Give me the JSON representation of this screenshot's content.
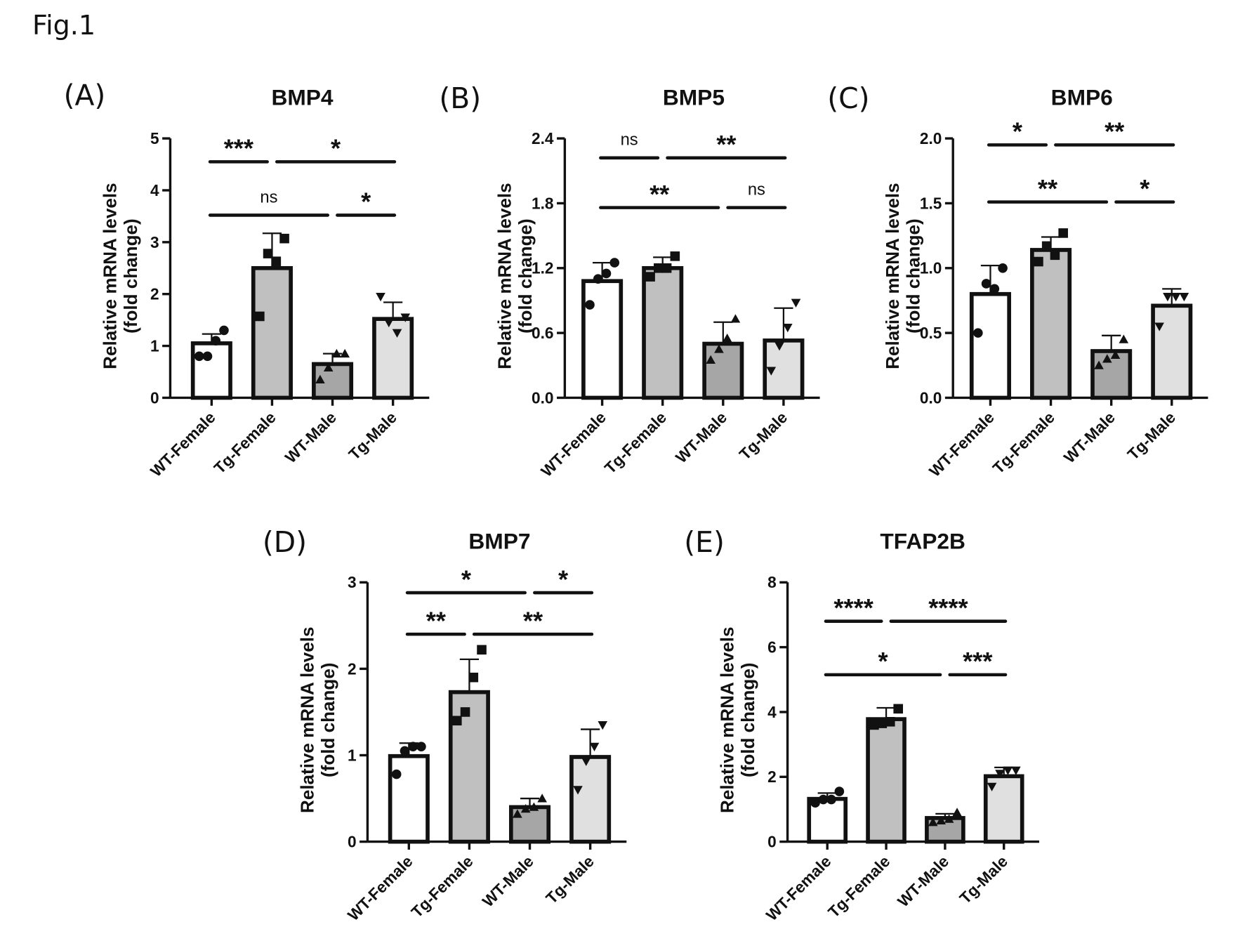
{
  "figure_label": "Fig.1",
  "colors": {
    "WT-Female": "#ffffff",
    "Tg-Female": "#c0c0c0",
    "WT-Male": "#a6a6a6",
    "Tg-Male": "#e0e0e0",
    "stroke": "#111111"
  },
  "markers": {
    "WT-Female": "circle",
    "Tg-Female": "square",
    "WT-Male": "triangle-up",
    "Tg-Male": "triangle-down"
  },
  "chart_data": [
    {
      "panel": "(A)",
      "type": "bar",
      "title": "BMP4",
      "ylabel": [
        "Relative mRNA levels",
        "(fold change)"
      ],
      "xlabel": "",
      "categories": [
        "WT-Female",
        "Tg-Female",
        "WT-Male",
        "Tg-Male"
      ],
      "ylim": [
        0,
        5
      ],
      "yticks": [
        "0",
        "1",
        "2",
        "3",
        "4",
        "5"
      ],
      "ytick_values": [
        0,
        1,
        2,
        3,
        4,
        5
      ],
      "values": [
        1.05,
        2.5,
        0.65,
        1.52
      ],
      "errors": [
        0.18,
        0.67,
        0.2,
        0.32
      ],
      "points": [
        [
          0.8,
          0.8,
          1.1,
          1.3
        ],
        [
          1.57,
          2.78,
          2.63,
          3.07
        ],
        [
          0.35,
          0.58,
          0.85,
          0.85
        ],
        [
          1.95,
          1.45,
          1.25,
          1.55
        ]
      ],
      "significance": [
        {
          "from": 0,
          "to": 1,
          "label": "***",
          "level": 4.55
        },
        {
          "from": 1,
          "to": 3,
          "label": "*",
          "level": 4.55
        },
        {
          "from": 0,
          "to": 2,
          "label": "ns",
          "level": 3.52
        },
        {
          "from": 2,
          "to": 3,
          "label": "*",
          "level": 3.52
        }
      ]
    },
    {
      "panel": "(B)",
      "type": "bar",
      "title": "BMP5",
      "ylabel": [
        "Relative mRNA levels",
        "(fold change)"
      ],
      "xlabel": "",
      "categories": [
        "WT-Female",
        "Tg-Female",
        "WT-Male",
        "Tg-Male"
      ],
      "ylim": [
        0,
        2.4
      ],
      "yticks": [
        "0.0",
        "0.6",
        "1.2",
        "1.8",
        "2.4"
      ],
      "ytick_values": [
        0,
        0.6,
        1.2,
        1.8,
        2.4
      ],
      "values": [
        1.08,
        1.2,
        0.5,
        0.53
      ],
      "errors": [
        0.17,
        0.1,
        0.2,
        0.3
      ],
      "points": [
        [
          0.86,
          1.1,
          1.15,
          1.25
        ],
        [
          1.12,
          1.2,
          1.2,
          1.31
        ],
        [
          0.35,
          0.45,
          0.55,
          0.73
        ],
        [
          0.25,
          0.48,
          0.65,
          0.88
        ]
      ],
      "significance": [
        {
          "from": 0,
          "to": 1,
          "label": "ns",
          "level": 2.22
        },
        {
          "from": 1,
          "to": 3,
          "label": "**",
          "level": 2.22
        },
        {
          "from": 0,
          "to": 2,
          "label": "**",
          "level": 1.76
        },
        {
          "from": 2,
          "to": 3,
          "label": "ns",
          "level": 1.76
        }
      ]
    },
    {
      "panel": "(C)",
      "type": "bar",
      "title": "BMP6",
      "ylabel": [
        "Relative mRNA levels",
        "(fold change)"
      ],
      "xlabel": "",
      "categories": [
        "WT-Female",
        "Tg-Female",
        "WT-Male",
        "Tg-Male"
      ],
      "ylim": [
        0,
        2.0
      ],
      "yticks": [
        "0.0",
        "0.5",
        "1.0",
        "1.5",
        "2.0"
      ],
      "ytick_values": [
        0,
        0.5,
        1.0,
        1.5,
        2.0
      ],
      "values": [
        0.8,
        1.14,
        0.36,
        0.71
      ],
      "errors": [
        0.22,
        0.1,
        0.12,
        0.13
      ],
      "points": [
        [
          0.5,
          0.88,
          0.84,
          1.0
        ],
        [
          1.05,
          1.17,
          1.1,
          1.27
        ],
        [
          0.25,
          0.3,
          0.33,
          0.45
        ],
        [
          0.55,
          0.78,
          0.78,
          0.78
        ]
      ],
      "significance": [
        {
          "from": 0,
          "to": 1,
          "label": "*",
          "level": 1.95
        },
        {
          "from": 1,
          "to": 3,
          "label": "**",
          "level": 1.95
        },
        {
          "from": 0,
          "to": 2,
          "label": "**",
          "level": 1.51
        },
        {
          "from": 2,
          "to": 3,
          "label": "*",
          "level": 1.51
        }
      ]
    },
    {
      "panel": "(D)",
      "type": "bar",
      "title": "BMP7",
      "ylabel": [
        "Relative mRNA levels",
        "(fold change)"
      ],
      "xlabel": "",
      "categories": [
        "WT-Female",
        "Tg-Female",
        "WT-Male",
        "Tg-Male"
      ],
      "ylim": [
        0,
        3
      ],
      "yticks": [
        "0",
        "1",
        "2",
        "3"
      ],
      "ytick_values": [
        0,
        1,
        2,
        3
      ],
      "values": [
        0.99,
        1.73,
        0.4,
        0.98
      ],
      "errors": [
        0.15,
        0.38,
        0.1,
        0.32
      ],
      "points": [
        [
          0.78,
          1.05,
          1.1,
          1.1
        ],
        [
          1.4,
          1.5,
          1.9,
          2.22
        ],
        [
          0.32,
          0.38,
          0.4,
          0.5
        ],
        [
          0.6,
          0.93,
          1.1,
          1.35
        ]
      ],
      "significance": [
        {
          "from": 0,
          "to": 2,
          "label": "*",
          "level": 2.88
        },
        {
          "from": 2,
          "to": 3,
          "label": "*",
          "level": 2.88
        },
        {
          "from": 0,
          "to": 1,
          "label": "**",
          "level": 2.4
        },
        {
          "from": 1,
          "to": 3,
          "label": "**",
          "level": 2.4
        }
      ]
    },
    {
      "panel": "(E)",
      "type": "bar",
      "title": "TFAP2B",
      "ylabel": [
        "Relative mRNA levels",
        "(fold change)"
      ],
      "xlabel": "",
      "categories": [
        "WT-Female",
        "Tg-Female",
        "WT-Male",
        "Tg-Male"
      ],
      "ylim": [
        0,
        8
      ],
      "yticks": [
        "0",
        "2",
        "4",
        "6",
        "8"
      ],
      "ytick_values": [
        0,
        2,
        4,
        6,
        8
      ],
      "values": [
        1.32,
        3.78,
        0.73,
        2.02
      ],
      "errors": [
        0.18,
        0.35,
        0.13,
        0.27
      ],
      "points": [
        [
          1.2,
          1.3,
          1.3,
          1.55
        ],
        [
          3.6,
          3.65,
          3.7,
          4.1
        ],
        [
          0.6,
          0.65,
          0.7,
          0.9
        ],
        [
          1.7,
          2.1,
          2.2,
          2.2
        ]
      ],
      "significance": [
        {
          "from": 0,
          "to": 1,
          "label": "****",
          "level": 6.8
        },
        {
          "from": 1,
          "to": 3,
          "label": "****",
          "level": 6.8
        },
        {
          "from": 0,
          "to": 2,
          "label": "*",
          "level": 5.15
        },
        {
          "from": 2,
          "to": 3,
          "label": "***",
          "level": 5.15
        }
      ]
    }
  ]
}
